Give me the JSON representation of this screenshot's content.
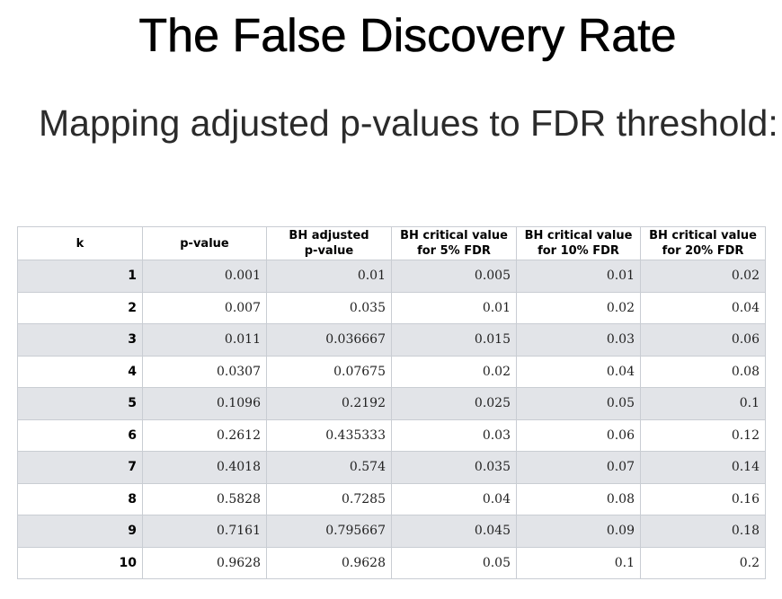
{
  "title": "The False Discovery Rate",
  "subtitle": "Mapping adjusted p-values to FDR threshold:",
  "table": {
    "headers": [
      "k",
      "p-value",
      "BH adjusted p-value",
      "BH critical value for 5% FDR",
      "BH critical value for 10% FDR",
      "BH critical value for 20% FDR"
    ],
    "header_lines": [
      [
        "k"
      ],
      [
        "p-value"
      ],
      [
        "BH adjusted",
        "p-value"
      ],
      [
        "BH critical value",
        "for 5% FDR"
      ],
      [
        "BH critical value",
        "for 10% FDR"
      ],
      [
        "BH critical value",
        "for 20% FDR"
      ]
    ],
    "rows": [
      [
        "1",
        "0.001",
        "0.01",
        "0.005",
        "0.01",
        "0.02"
      ],
      [
        "2",
        "0.007",
        "0.035",
        "0.01",
        "0.02",
        "0.04"
      ],
      [
        "3",
        "0.011",
        "0.036667",
        "0.015",
        "0.03",
        "0.06"
      ],
      [
        "4",
        "0.0307",
        "0.07675",
        "0.02",
        "0.04",
        "0.08"
      ],
      [
        "5",
        "0.1096",
        "0.2192",
        "0.025",
        "0.05",
        "0.1"
      ],
      [
        "6",
        "0.2612",
        "0.435333",
        "0.03",
        "0.06",
        "0.12"
      ],
      [
        "7",
        "0.4018",
        "0.574",
        "0.035",
        "0.07",
        "0.14"
      ],
      [
        "8",
        "0.5828",
        "0.7285",
        "0.04",
        "0.08",
        "0.16"
      ],
      [
        "9",
        "0.7161",
        "0.795667",
        "0.045",
        "0.09",
        "0.18"
      ],
      [
        "10",
        "0.9628",
        "0.9628",
        "0.05",
        "0.1",
        "0.2"
      ]
    ]
  },
  "colors": {
    "stripe": "#e2e4e8",
    "border": "#c9cdd3"
  }
}
